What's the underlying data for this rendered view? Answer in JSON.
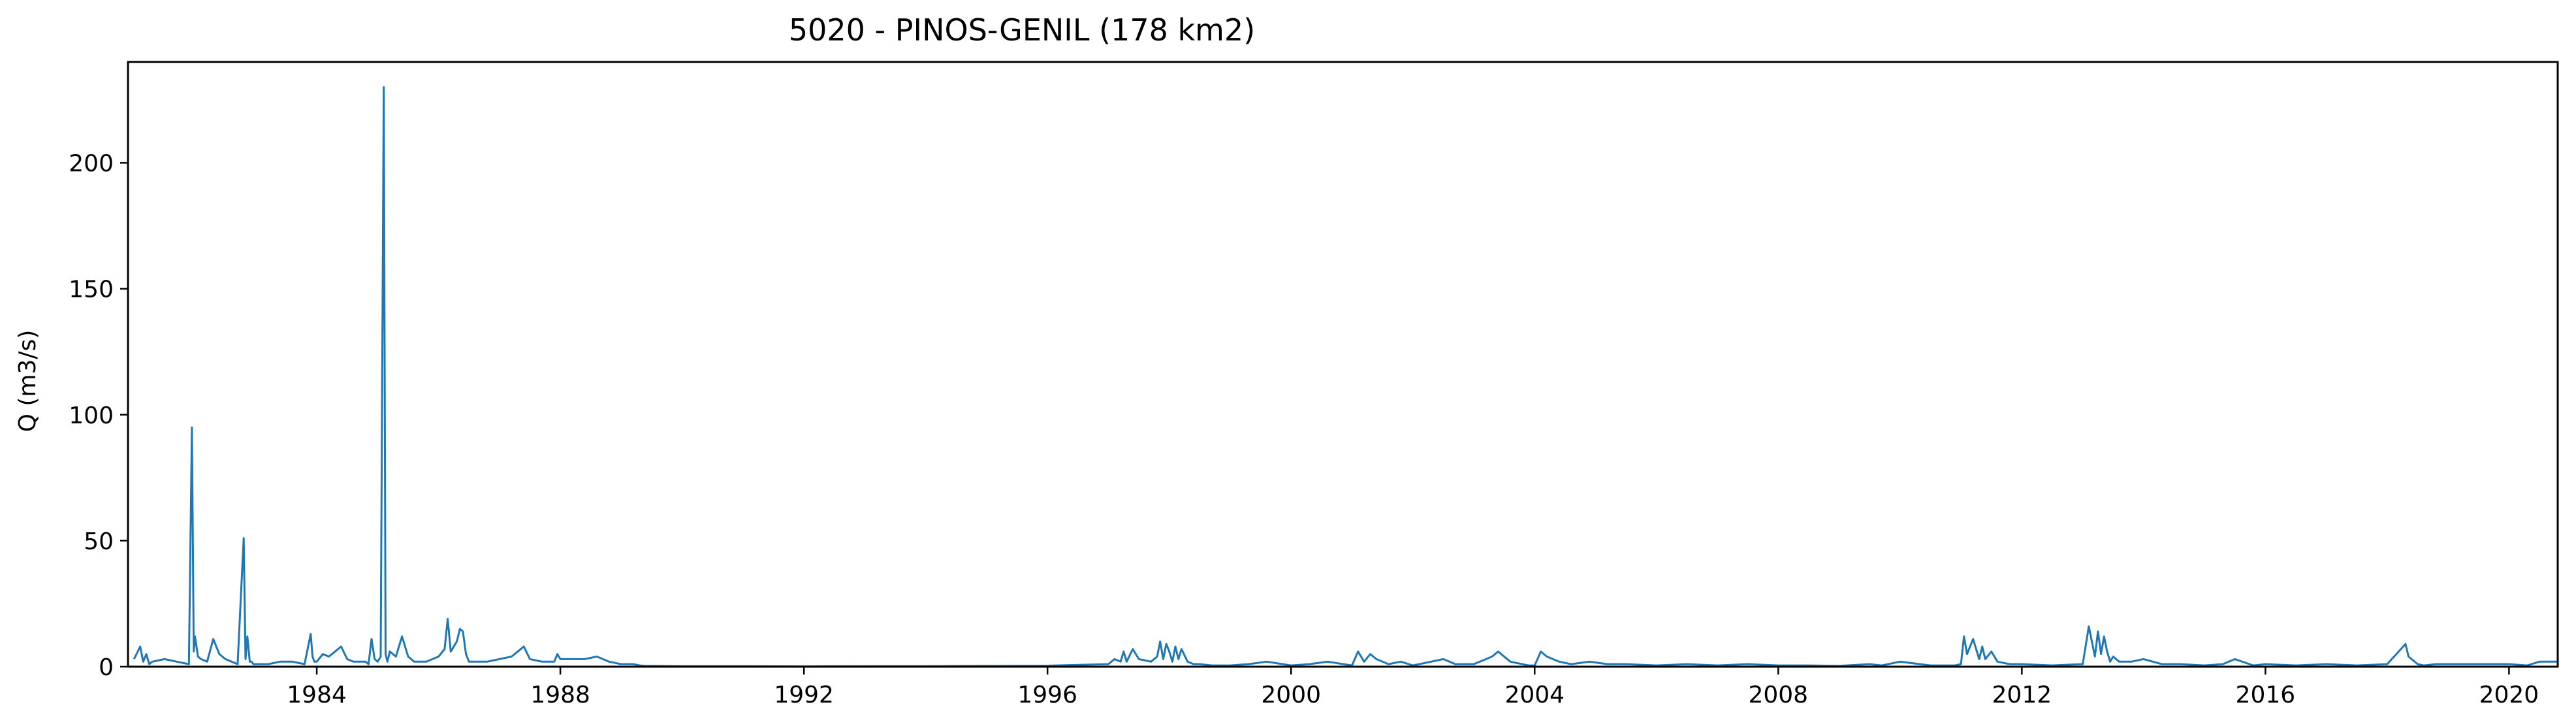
{
  "chart_data": {
    "type": "line",
    "title": "5020 - PINOS-GENIL (178 km2)",
    "xlabel": "",
    "ylabel": "Q (m3/s)",
    "xlim": [
      1980.9,
      2020.8
    ],
    "ylim": [
      0,
      240
    ],
    "x_ticks": [
      1984,
      1988,
      1992,
      1996,
      2000,
      2004,
      2008,
      2012,
      2016,
      2020
    ],
    "x_tick_labels": [
      "1984",
      "1988",
      "1992",
      "1996",
      "2000",
      "2004",
      "2008",
      "2012",
      "2016",
      "2020"
    ],
    "y_ticks": [
      0,
      50,
      100,
      150,
      200
    ],
    "y_tick_labels": [
      "0",
      "50",
      "100",
      "150",
      "200"
    ],
    "grid": false,
    "color": "#1f77b4",
    "series": [
      {
        "x": [
          1981.0,
          1981.1,
          1981.15,
          1981.2,
          1981.25,
          1981.3,
          1981.5,
          1981.7,
          1981.9,
          1981.95,
          1981.98,
          1982.0,
          1982.05,
          1982.1,
          1982.2,
          1982.3,
          1982.35,
          1982.4,
          1982.5,
          1982.6,
          1982.7,
          1982.8,
          1982.83,
          1982.86,
          1982.9,
          1982.93,
          1982.96,
          1983.0,
          1983.2,
          1983.4,
          1983.6,
          1983.8,
          1983.9,
          1983.93,
          1983.96,
          1984.0,
          1984.1,
          1984.2,
          1984.3,
          1984.4,
          1984.5,
          1984.6,
          1984.7,
          1984.8,
          1984.85,
          1984.9,
          1984.95,
          1985.0,
          1985.05,
          1985.1,
          1985.13,
          1985.16,
          1985.2,
          1985.3,
          1985.4,
          1985.5,
          1985.6,
          1985.8,
          1986.0,
          1986.1,
          1986.15,
          1986.2,
          1986.3,
          1986.35,
          1986.4,
          1986.45,
          1986.5,
          1986.6,
          1986.8,
          1987.0,
          1987.2,
          1987.3,
          1987.4,
          1987.5,
          1987.7,
          1987.9,
          1987.95,
          1988.0,
          1988.2,
          1988.4,
          1988.6,
          1988.8,
          1989.0,
          1989.2,
          1989.3,
          1989.4,
          1990.0,
          1991.0,
          1992.0,
          1993.0,
          1994.0,
          1995.0,
          1996.0,
          1997.0,
          1997.1,
          1997.2,
          1997.25,
          1997.3,
          1997.4,
          1997.5,
          1997.7,
          1997.8,
          1997.85,
          1997.9,
          1997.95,
          1998.0,
          1998.05,
          1998.1,
          1998.15,
          1998.2,
          1998.3,
          1998.4,
          1998.5,
          1998.7,
          1999.0,
          1999.3,
          1999.6,
          2000.0,
          2000.3,
          2000.6,
          2001.0,
          2001.1,
          2001.2,
          2001.3,
          2001.4,
          2001.6,
          2001.8,
          2002.0,
          2002.3,
          2002.5,
          2002.7,
          2003.0,
          2003.2,
          2003.3,
          2003.4,
          2003.6,
          2003.9,
          2004.0,
          2004.1,
          2004.2,
          2004.4,
          2004.6,
          2004.9,
          2005.2,
          2005.5,
          2006.0,
          2006.5,
          2007.0,
          2007.5,
          2008.0,
          2008.5,
          2009.0,
          2009.5,
          2009.7,
          2010.0,
          2010.5,
          2010.9,
          2011.0,
          2011.05,
          2011.1,
          2011.2,
          2011.3,
          2011.35,
          2011.4,
          2011.5,
          2011.6,
          2011.8,
          2012.0,
          2012.5,
          2013.0,
          2013.1,
          2013.2,
          2013.25,
          2013.3,
          2013.35,
          2013.4,
          2013.45,
          2013.5,
          2013.6,
          2013.8,
          2014.0,
          2014.3,
          2014.6,
          2015.0,
          2015.3,
          2015.5,
          2015.8,
          2016.0,
          2016.5,
          2017.0,
          2017.5,
          2018.0,
          2018.3,
          2018.35,
          2018.4,
          2018.5,
          2018.6,
          2018.8,
          2019.0,
          2019.5,
          2020.0,
          2020.3,
          2020.5,
          2020.8
        ],
        "y": [
          3,
          8,
          2,
          5,
          1,
          2,
          3,
          2,
          1,
          95,
          6,
          12,
          4,
          3,
          2,
          11,
          8,
          5,
          3,
          2,
          1,
          51,
          3,
          12,
          2,
          2,
          1,
          1,
          1,
          2,
          2,
          1,
          13,
          4,
          2,
          2,
          5,
          4,
          6,
          8,
          3,
          2,
          2,
          2,
          1,
          11,
          3,
          2,
          4,
          230,
          5,
          2,
          6,
          4,
          12,
          4,
          2,
          2,
          4,
          7,
          19,
          6,
          10,
          15,
          14,
          5,
          2,
          2,
          2,
          3,
          4,
          6,
          8,
          3,
          2,
          2,
          5,
          3,
          3,
          3,
          4,
          2,
          1,
          1,
          0.5,
          0.3,
          0.2,
          0.2,
          0.1,
          0.2,
          0.2,
          0.3,
          0.4,
          1,
          3,
          2,
          6,
          2,
          7,
          3,
          2,
          4,
          10,
          3,
          9,
          6,
          2,
          8,
          3,
          7,
          2,
          1,
          1,
          0.5,
          0.5,
          1,
          2,
          0.5,
          1,
          2,
          0.5,
          6,
          2,
          5,
          3,
          1,
          2,
          0.5,
          2,
          3,
          1,
          1,
          3,
          4,
          6,
          2,
          0.5,
          0.5,
          6,
          4,
          2,
          1,
          2,
          1,
          1,
          0.5,
          1,
          0.5,
          1,
          0.5,
          0.5,
          0.3,
          1,
          0.5,
          2,
          0.5,
          0.5,
          1,
          12,
          5,
          11,
          3,
          8,
          3,
          6,
          2,
          1,
          1,
          0.5,
          1,
          16,
          4,
          14,
          5,
          12,
          6,
          2,
          4,
          2,
          2,
          3,
          1,
          1,
          0.5,
          1,
          3,
          0.5,
          1,
          0.5,
          1,
          0.5,
          1,
          9,
          4,
          3,
          1,
          0.5,
          1,
          1,
          1,
          1,
          0.5,
          2,
          2
        ]
      }
    ]
  }
}
